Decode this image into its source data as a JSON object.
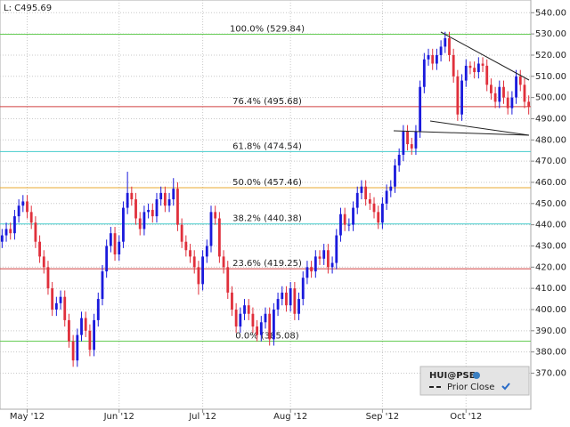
{
  "chart_data": {
    "type": "candlestick",
    "price_label": "L: C495.69",
    "up_color": "#1a1adc",
    "down_color": "#e0303c",
    "open": [
      432,
      435,
      438,
      436,
      444,
      449,
      451,
      446,
      441,
      432,
      425,
      420,
      410,
      400,
      403,
      406,
      395,
      385,
      376,
      388,
      396,
      390,
      381,
      395,
      405,
      418,
      430,
      436,
      426,
      432,
      448,
      455,
      452,
      443,
      438,
      446,
      447,
      444,
      452,
      455,
      449,
      452,
      457,
      440,
      432,
      428,
      425,
      420,
      412,
      425,
      430,
      446,
      443,
      425,
      420,
      408,
      400,
      392,
      398,
      402,
      398,
      392,
      388,
      394,
      398,
      386,
      400,
      405,
      408,
      402,
      410,
      398,
      405,
      415,
      420,
      418,
      425,
      424,
      428,
      420,
      422,
      435,
      445,
      440,
      440,
      448,
      455,
      458,
      452,
      450,
      446,
      441,
      450,
      456,
      458,
      468,
      473,
      484,
      478,
      476,
      484,
      505,
      518,
      520,
      516,
      520,
      524,
      528,
      520,
      510,
      492,
      508,
      515,
      514,
      512,
      516,
      515,
      506,
      502,
      498,
      505,
      500,
      495,
      500,
      510,
      506,
      498
    ],
    "high": [
      438,
      441,
      441,
      447,
      452,
      454,
      454,
      449,
      444,
      435,
      428,
      423,
      413,
      406,
      409,
      409,
      398,
      388,
      391,
      399,
      399,
      393,
      398,
      408,
      421,
      433,
      439,
      439,
      435,
      451,
      465,
      458,
      455,
      446,
      449,
      450,
      450,
      455,
      458,
      458,
      455,
      462,
      460,
      443,
      435,
      431,
      428,
      423,
      428,
      433,
      449,
      449,
      446,
      428,
      423,
      411,
      403,
      401,
      405,
      405,
      401,
      395,
      397,
      401,
      401,
      403,
      408,
      411,
      411,
      413,
      413,
      408,
      418,
      423,
      423,
      428,
      428,
      431,
      431,
      425,
      438,
      448,
      448,
      443,
      451,
      458,
      461,
      461,
      455,
      453,
      449,
      453,
      459,
      461,
      471,
      476,
      487,
      487,
      481,
      487,
      508,
      521,
      523,
      523,
      523,
      527,
      531,
      531,
      523,
      513,
      511,
      518,
      517,
      517,
      519,
      519,
      518,
      509,
      505,
      508,
      508,
      503,
      503,
      513,
      513,
      509,
      501
    ],
    "low": [
      429,
      432,
      433,
      433,
      441,
      446,
      443,
      438,
      429,
      422,
      417,
      407,
      397,
      397,
      400,
      392,
      382,
      373,
      373,
      385,
      387,
      378,
      378,
      392,
      402,
      415,
      427,
      423,
      423,
      429,
      445,
      449,
      440,
      435,
      435,
      443,
      441,
      441,
      449,
      446,
      446,
      449,
      437,
      429,
      425,
      422,
      417,
      407,
      409,
      422,
      427,
      440,
      422,
      417,
      405,
      397,
      389,
      389,
      395,
      395,
      389,
      385,
      385,
      391,
      383,
      383,
      397,
      402,
      399,
      399,
      395,
      395,
      402,
      412,
      415,
      415,
      421,
      421,
      417,
      417,
      419,
      432,
      437,
      437,
      437,
      445,
      452,
      449,
      447,
      443,
      438,
      438,
      447,
      453,
      455,
      465,
      470,
      475,
      473,
      473,
      481,
      502,
      515,
      513,
      513,
      517,
      521,
      517,
      507,
      489,
      489,
      505,
      511,
      509,
      509,
      512,
      503,
      499,
      495,
      495,
      497,
      492,
      492,
      497,
      503,
      495,
      492
    ],
    "close": [
      435,
      438,
      436,
      444,
      449,
      451,
      446,
      441,
      432,
      425,
      420,
      410,
      400,
      403,
      406,
      395,
      385,
      376,
      388,
      396,
      390,
      381,
      395,
      405,
      418,
      430,
      436,
      426,
      432,
      448,
      455,
      452,
      443,
      438,
      446,
      447,
      444,
      452,
      455,
      449,
      452,
      457,
      440,
      432,
      428,
      425,
      420,
      412,
      425,
      430,
      446,
      443,
      425,
      420,
      408,
      400,
      392,
      398,
      402,
      398,
      392,
      388,
      394,
      398,
      386,
      400,
      405,
      408,
      402,
      410,
      398,
      405,
      415,
      420,
      418,
      425,
      424,
      428,
      420,
      422,
      435,
      445,
      440,
      440,
      448,
      455,
      458,
      452,
      450,
      446,
      441,
      450,
      456,
      458,
      468,
      473,
      484,
      478,
      476,
      484,
      505,
      518,
      520,
      516,
      520,
      524,
      528,
      520,
      510,
      492,
      508,
      515,
      514,
      512,
      516,
      515,
      506,
      502,
      498,
      505,
      500,
      495,
      500,
      510,
      506,
      498,
      495.69
    ],
    "xlim": [
      -0.5,
      126.5
    ],
    "xticks": [
      {
        "value": 6,
        "label": "May '12"
      },
      {
        "value": 28,
        "label": "Jun '12"
      },
      {
        "value": 48,
        "label": "Jul '12"
      },
      {
        "value": 69,
        "label": "Aug '12"
      },
      {
        "value": 91,
        "label": "Sep '12"
      },
      {
        "value": 111,
        "label": "Oct '12"
      }
    ],
    "ylim": [
      353,
      546
    ],
    "yticks": [
      {
        "value": 370,
        "label": "370.00"
      },
      {
        "value": 380,
        "label": "380.00"
      },
      {
        "value": 390,
        "label": "390.00"
      },
      {
        "value": 400,
        "label": "400.00"
      },
      {
        "value": 410,
        "label": "410.00"
      },
      {
        "value": 420,
        "label": "420.00"
      },
      {
        "value": 430,
        "label": "430.00"
      },
      {
        "value": 440,
        "label": "440.00"
      },
      {
        "value": 450,
        "label": "450.00"
      },
      {
        "value": 460,
        "label": "460.00"
      },
      {
        "value": 470,
        "label": "470.00"
      },
      {
        "value": 480,
        "label": "480.00"
      },
      {
        "value": 490,
        "label": "490.00"
      },
      {
        "value": 500,
        "label": "500.00"
      },
      {
        "value": 510,
        "label": "510.00"
      },
      {
        "value": 520,
        "label": "520.00"
      },
      {
        "value": 530,
        "label": "530.00"
      },
      {
        "value": 540,
        "label": "540.00"
      }
    ],
    "grid": true,
    "levels": [
      {
        "label": "100.0% (529.84)",
        "value": 529.84,
        "color": "#66cc55"
      },
      {
        "label": "76.4% (495.68)",
        "value": 495.68,
        "color": "#d04040"
      },
      {
        "label": "61.8% (474.54)",
        "value": 474.54,
        "color": "#44cccc"
      },
      {
        "label": "50.0% (457.46)",
        "value": 457.46,
        "color": "#e8a830"
      },
      {
        "label": "38.2% (440.38)",
        "value": 440.38,
        "color": "#44cccc"
      },
      {
        "label": "23.6% (419.25)",
        "value": 419.25,
        "color": "#d04040"
      },
      {
        "label": "0.0% (385.08)",
        "value": 385.08,
        "color": "#66cc55"
      }
    ],
    "legend": {
      "symbol": "HUI@PSE",
      "item": "Prior Close"
    }
  }
}
